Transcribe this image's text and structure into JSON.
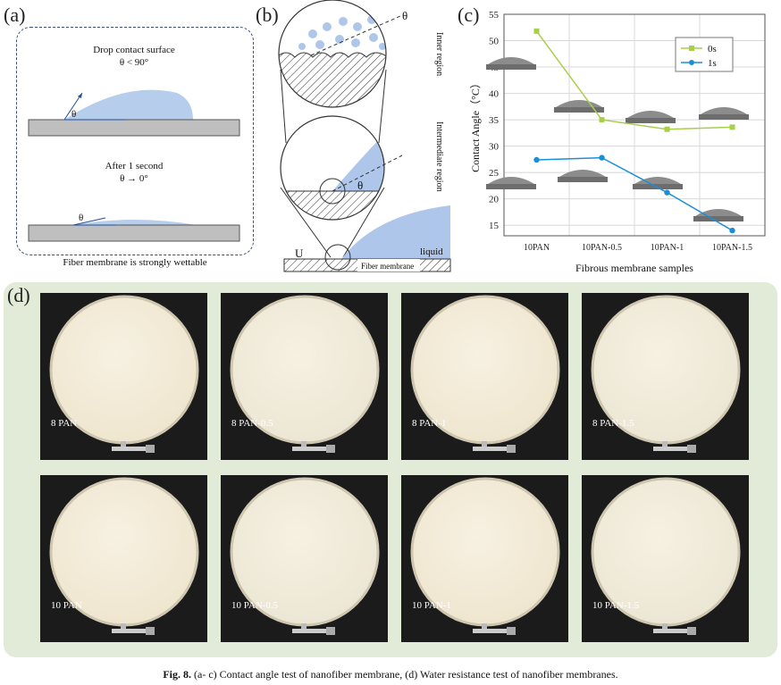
{
  "panel_a": {
    "letter": "(a)",
    "top_text_1": "Drop contact surface",
    "top_text_2": "θ < 90°",
    "angle_symbol": "θ",
    "bottom_text_1": "After 1 second",
    "bottom_text_2": "θ → 0°",
    "footer": "Fiber membrane is strongly wettable"
  },
  "panel_b": {
    "letter": "(b)",
    "theta_top": "θ",
    "inner_region": "Inner region",
    "intermediate_region": "Intermediate region",
    "theta_mid": "θ",
    "u_label": "U",
    "liquid": "liquid",
    "fiber_membrane": "Fiber membrane"
  },
  "panel_c": {
    "letter": "(c)",
    "colors": {
      "s0": "#a8cf4a",
      "s1": "#1b8fd6"
    }
  },
  "chart_data": {
    "type": "line",
    "title": "",
    "xlabel": "Fibrous membrane samples",
    "ylabel": "Contact Angle（°C）",
    "categories": [
      "10PAN",
      "10PAN-0.5",
      "10PAN-1",
      "10PAN-1.5"
    ],
    "ylim": [
      13,
      55
    ],
    "yticks": [
      15,
      20,
      25,
      30,
      35,
      40,
      45,
      50,
      55
    ],
    "legend_position": "top-right",
    "series": [
      {
        "name": "0s",
        "values": [
          51.8,
          35.0,
          33.2,
          33.6
        ]
      },
      {
        "name": "1s",
        "values": [
          27.4,
          27.8,
          21.2,
          14.0
        ]
      }
    ]
  },
  "panel_d": {
    "letter": "(d)",
    "photos": [
      {
        "label": "8 PAN"
      },
      {
        "label": "8 PAN-0.5"
      },
      {
        "label": "8 PAN-1"
      },
      {
        "label": "8 PAN-1.5"
      },
      {
        "label": "10 PAN"
      },
      {
        "label": "10 PAN-0.5"
      },
      {
        "label": "10 PAN-1"
      },
      {
        "label": "10 PAN-1.5"
      }
    ]
  },
  "caption": {
    "fig_label": "Fig. 8.",
    "text": "(a- c) Contact angle test of nanofiber membrane, (d) Water resistance test of nanofiber membranes."
  }
}
